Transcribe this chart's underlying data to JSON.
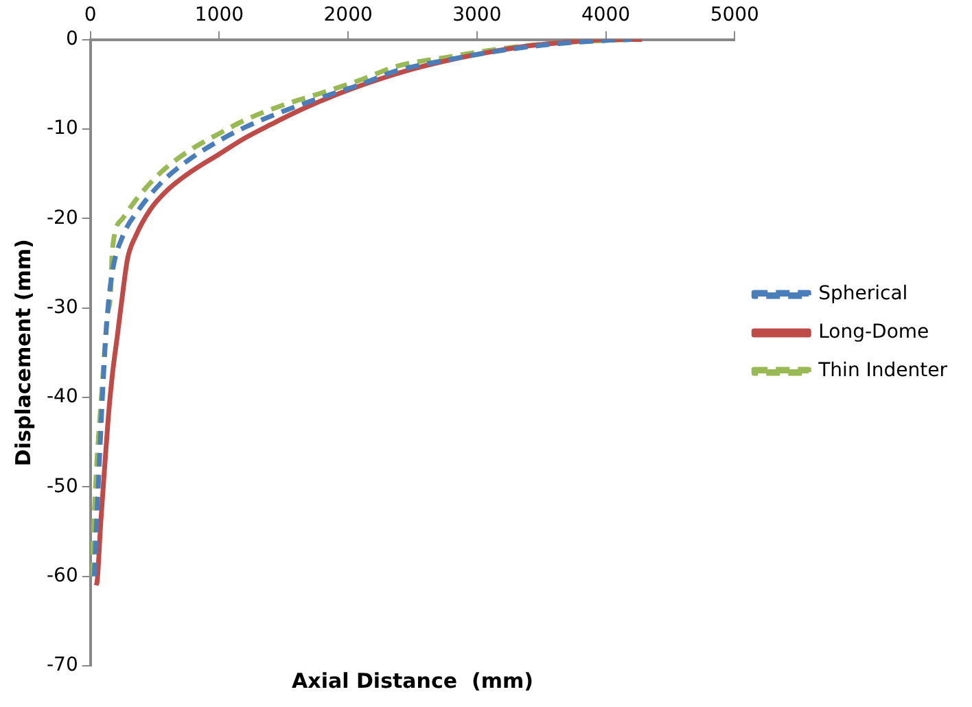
{
  "chart_data": {
    "type": "line",
    "xlabel": "Axial Distance  (mm)",
    "ylabel": "Displacement (mm)",
    "xlim": [
      0,
      5000
    ],
    "xticks": [
      0,
      1000,
      2000,
      3000,
      4000,
      5000
    ],
    "ylim": [
      -70,
      0
    ],
    "yticks": [
      -70,
      -60,
      -50,
      -40,
      -30,
      -20,
      -10,
      0
    ],
    "grid": false,
    "legend": "right",
    "marker": "none",
    "series": [
      {
        "name": "Spherical",
        "color": "#4a7ebb",
        "line_style": "dashed",
        "x": [
          30,
          45,
          70,
          100,
          130,
          170,
          250,
          376,
          550,
          758,
          1000,
          1200,
          1500,
          1787,
          2100,
          2375,
          2800,
          3200,
          3600,
          4000,
          4200
        ],
        "values": [
          -60,
          -55,
          -47,
          -38,
          -31,
          -26,
          -22,
          -19,
          -16,
          -13.5,
          -11.3,
          -9.8,
          -8,
          -6.5,
          -5,
          -3.5,
          -2.2,
          -1.2,
          -0.5,
          -0.1,
          0
        ]
      },
      {
        "name": "Long-Dome",
        "color": "#be4b48",
        "line_style": "solid",
        "x": [
          45,
          53,
          80,
          112,
          140,
          170,
          210,
          258,
          288,
          350,
          465,
          600,
          758,
          1000,
          1200,
          1400,
          1640,
          1900,
          2228,
          2500,
          2815,
          3100,
          3404,
          3700,
          3992,
          4280
        ],
        "values": [
          -61,
          -60.5,
          -54,
          -47.5,
          -42,
          -37.5,
          -33,
          -27.5,
          -24.5,
          -22,
          -19,
          -16.8,
          -15,
          -12.8,
          -11,
          -9.5,
          -7.8,
          -6.2,
          -4.5,
          -3.3,
          -2.2,
          -1.4,
          -0.7,
          -0.3,
          0,
          0
        ]
      },
      {
        "name": "Thin Indenter",
        "color": "#98b954",
        "line_style": "dashed",
        "x": [
          5,
          9,
          30,
          53,
          75,
          97,
          130,
          156,
          170,
          250,
          376,
          550,
          758,
          1000,
          1200,
          1500,
          1787,
          2100,
          2375,
          2800,
          3200,
          3600,
          4000,
          4200
        ],
        "values": [
          -60,
          -59.5,
          -53,
          -46.5,
          -42,
          -37.5,
          -31,
          -28.5,
          -23.5,
          -20,
          -17.5,
          -14.8,
          -12.5,
          -10.5,
          -9,
          -7.3,
          -6,
          -4.5,
          -3,
          -1.9,
          -1,
          -0.4,
          -0.1,
          0
        ]
      }
    ]
  }
}
